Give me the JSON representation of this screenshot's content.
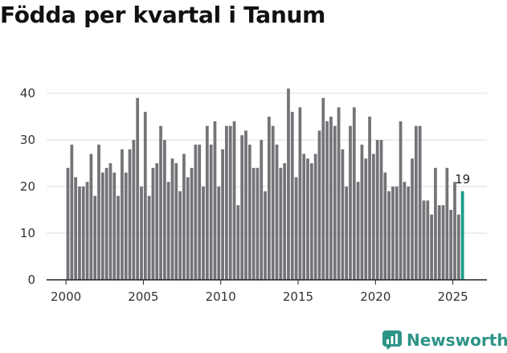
{
  "chart_data": {
    "type": "bar",
    "title": "Födda per kvartal i Tanum",
    "xlabel": "",
    "ylabel": "",
    "ylim": [
      0,
      42
    ],
    "yticks": [
      0,
      10,
      20,
      30,
      40
    ],
    "xticks": [
      2000,
      2005,
      2010,
      2015,
      2020,
      2025
    ],
    "grid": true,
    "highlight_color": "#1a9a8a",
    "bar_color": "#757378",
    "annotation": {
      "label": "19",
      "target": "last"
    },
    "series": [
      {
        "name": "Födda",
        "values": [
          24,
          29,
          22,
          20,
          20,
          21,
          27,
          18,
          29,
          23,
          24,
          25,
          23,
          18,
          28,
          23,
          28,
          30,
          39,
          20,
          36,
          18,
          24,
          25,
          33,
          30,
          21,
          26,
          25,
          19,
          27,
          22,
          24,
          29,
          29,
          20,
          33,
          29,
          34,
          20,
          28,
          33,
          33,
          34,
          16,
          31,
          32,
          29,
          24,
          24,
          30,
          19,
          35,
          33,
          29,
          24,
          25,
          41,
          36,
          22,
          37,
          27,
          26,
          25,
          27,
          32,
          39,
          34,
          35,
          33,
          37,
          28,
          20,
          33,
          37,
          21,
          29,
          26,
          35,
          27,
          30,
          30,
          23,
          19,
          20,
          20,
          34,
          21,
          20,
          26,
          33,
          33,
          17,
          17,
          14,
          24,
          16,
          16,
          24,
          15,
          21,
          14,
          19
        ]
      }
    ]
  },
  "brand": {
    "name": "Newsworthy"
  }
}
